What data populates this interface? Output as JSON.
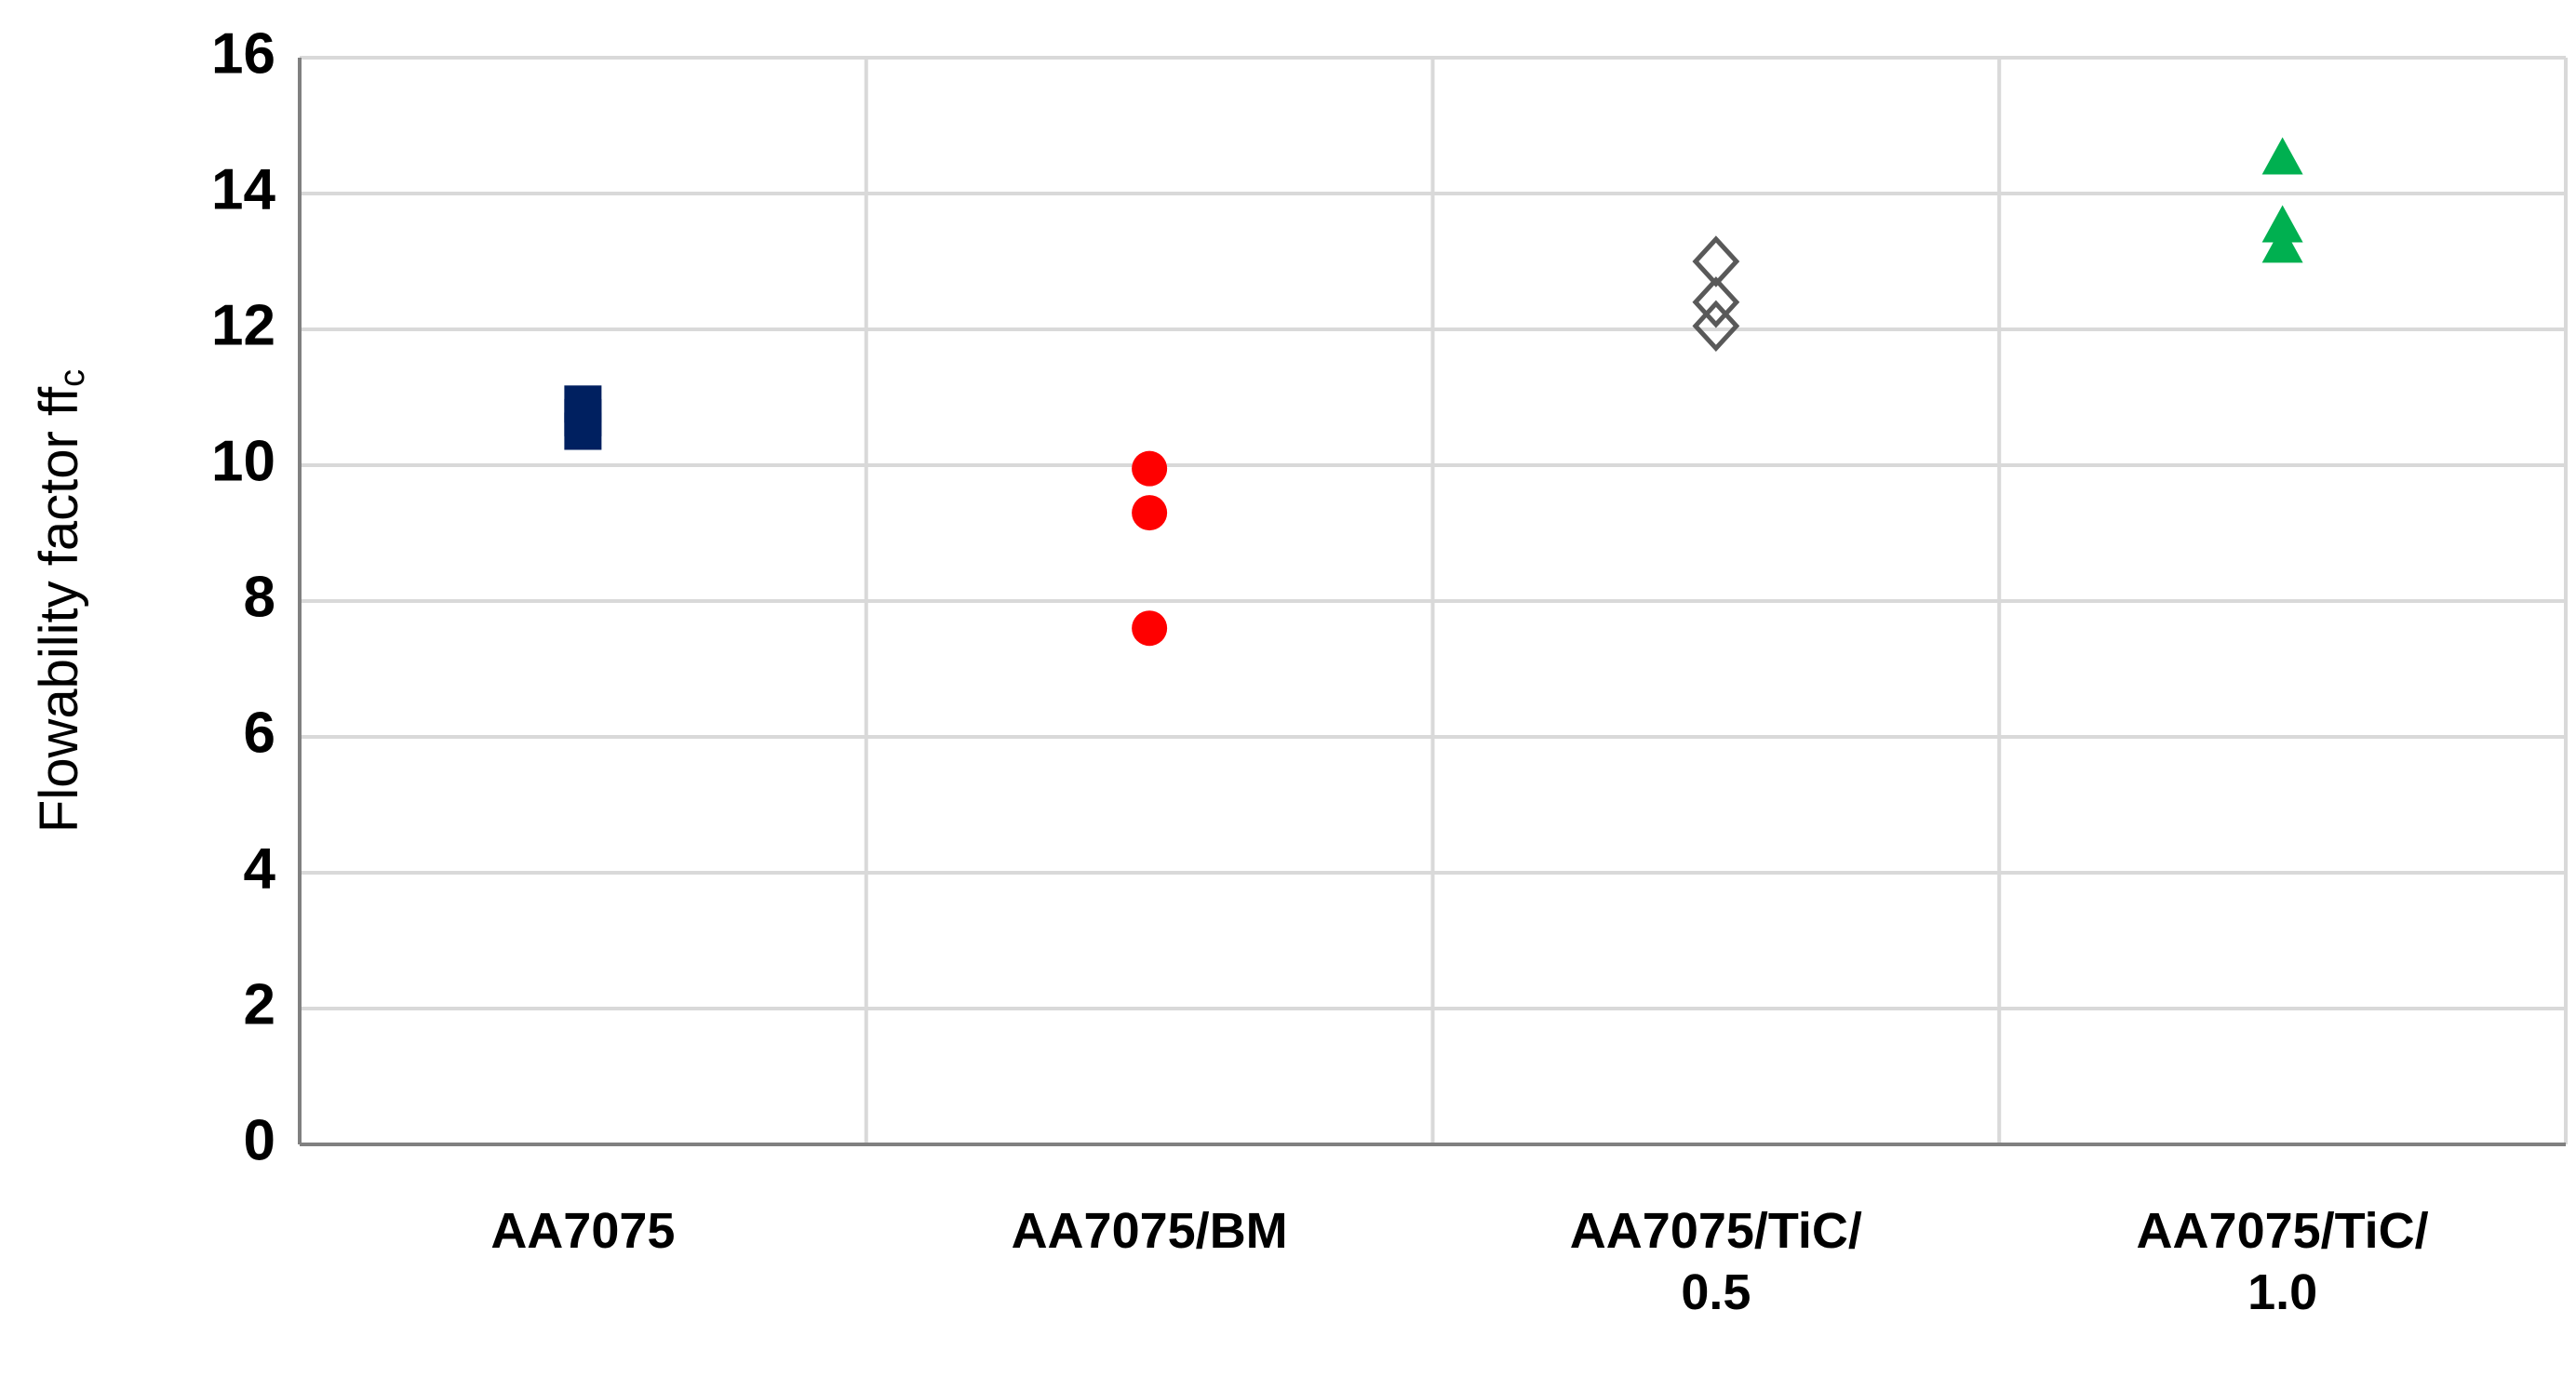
{
  "chart_data": {
    "type": "scatter",
    "y_label": "Flowability factor ff",
    "y_label_subscript": "c",
    "categories": [
      "AA7075",
      "AA7075/BM",
      "AA7075/TiC/\n0.5",
      "AA7075/TiC/\n1.0"
    ],
    "series": [
      {
        "color": "#002060",
        "marker": "square",
        "values": [
          10.5,
          10.7,
          10.9
        ]
      },
      {
        "color": "#ff0000",
        "marker": "circle",
        "values": [
          9.95,
          9.3,
          7.6
        ]
      },
      {
        "color": "#595959",
        "marker": "diamond-open",
        "values": [
          13.0,
          12.4,
          12.05
        ]
      },
      {
        "color": "#00b050",
        "marker": "triangle",
        "values": [
          14.5,
          13.5,
          13.2
        ]
      }
    ],
    "ylim": [
      0,
      16
    ],
    "yticks": [
      0,
      2,
      4,
      6,
      8,
      10,
      12,
      14,
      16
    ],
    "grid": true
  }
}
